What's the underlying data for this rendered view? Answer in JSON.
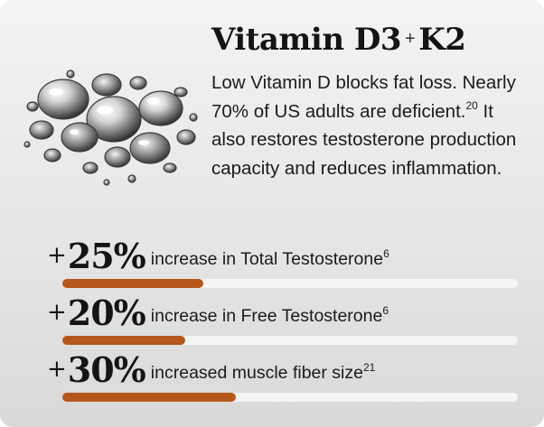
{
  "title": {
    "part1": "Vitamin D3",
    "plus": "+",
    "part2": "K2"
  },
  "description": {
    "text": "Low Vitamin D blocks fat loss. Nearly 70% of US adults are deficient.",
    "ref": "20",
    "text2": " It also restores testosterone production capacity and reduces inflammation."
  },
  "stats": [
    {
      "plus": "+",
      "value": "25%",
      "label": "increase in Total Testosterone",
      "ref": "6",
      "fill_fraction": 0.31
    },
    {
      "plus": "+",
      "value": "20%",
      "label": "increase in Free Testosterone",
      "ref": "6",
      "fill_fraction": 0.27
    },
    {
      "plus": "+",
      "value": "30%",
      "label": "increased muscle fiber size",
      "ref": "21",
      "fill_fraction": 0.38
    }
  ],
  "colors": {
    "bar_fill": "#b5581b",
    "bar_track": "#f5f5f5",
    "text": "#141414"
  },
  "image": {
    "icon": "water-bubbles-illustration"
  }
}
